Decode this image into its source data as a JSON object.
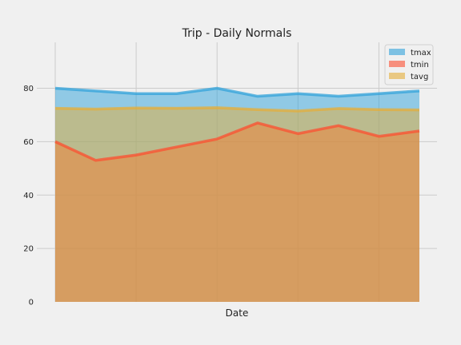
{
  "chart_data": {
    "type": "area",
    "title": "Trip - Daily Normals",
    "xlabel": "Date",
    "ylabel": "",
    "ylim": [
      0,
      99
    ],
    "yticks": [
      0,
      20,
      40,
      60,
      80
    ],
    "grid": true,
    "stacked": false,
    "legend_position": "top-right",
    "x": [
      0,
      1,
      2,
      3,
      4,
      5,
      6,
      7,
      8,
      9
    ],
    "series": [
      {
        "name": "tmax",
        "color": "#30a2da",
        "values": [
          80,
          79,
          78,
          78,
          80,
          77,
          78,
          77,
          78,
          79
        ]
      },
      {
        "name": "tmin",
        "color": "#fc4f30",
        "values": [
          60,
          53,
          55,
          58,
          61,
          67,
          63,
          66,
          62,
          64
        ]
      },
      {
        "name": "tavg",
        "color": "#e5ae38",
        "values": [
          72.5,
          72.2,
          72.6,
          72.5,
          72.7,
          72.0,
          71.5,
          72.4,
          72.0,
          71.9
        ]
      }
    ]
  }
}
